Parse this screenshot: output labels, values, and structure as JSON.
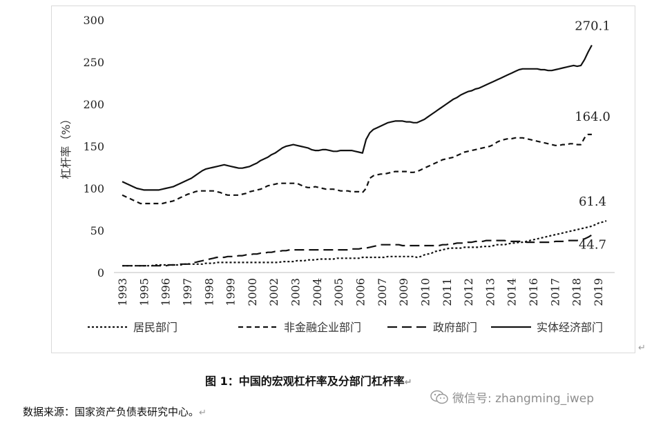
{
  "chart_data": {
    "type": "line",
    "ylabel": "杠杆率（%）",
    "xlabel": "",
    "ylim": [
      0,
      300
    ],
    "yticks": [
      0,
      50,
      100,
      150,
      200,
      250,
      300
    ],
    "xtick_labels": [
      "1993",
      "1995",
      "1996",
      "1997",
      "1998",
      "1999",
      "2000",
      "2002",
      "2003",
      "2004",
      "2005",
      "2006",
      "2007",
      "2009",
      "2010",
      "2011",
      "2012",
      "2013",
      "2014",
      "2016",
      "2017",
      "2018",
      "2019"
    ],
    "grid": false,
    "legend_position": "bottom",
    "x_quarters": "1993Q4–2019Q4",
    "series": [
      {
        "name": "居民部门",
        "dash": "3,3",
        "end_label": "61.4",
        "values": [
          8,
          8,
          8,
          8,
          8,
          8,
          8,
          8,
          8,
          9,
          9,
          9,
          9,
          9,
          9,
          9,
          9,
          10,
          10,
          10,
          10,
          10,
          10,
          11,
          11,
          11,
          12,
          12,
          12,
          12,
          12,
          12,
          12,
          12,
          12,
          12,
          12,
          12,
          12,
          12,
          12,
          12,
          12,
          12,
          13,
          13,
          13,
          13,
          14,
          14,
          14,
          15,
          15,
          15,
          16,
          16,
          16,
          16,
          16,
          17,
          17,
          17,
          17,
          17,
          17,
          17,
          18,
          18,
          18,
          18,
          18,
          18,
          18,
          19,
          19,
          19,
          19,
          19,
          19,
          19,
          19,
          18,
          19,
          21,
          22,
          23,
          25,
          26,
          27,
          28,
          29,
          29,
          29,
          29,
          30,
          30,
          30,
          30,
          30,
          31,
          31,
          31,
          32,
          33,
          33,
          33,
          34,
          35,
          35,
          36,
          36,
          37,
          38,
          39,
          40,
          41,
          42,
          43,
          44,
          45,
          46,
          47,
          48,
          49,
          50,
          51,
          52,
          53,
          54,
          55,
          57,
          59,
          60,
          61.4
        ]
      },
      {
        "name": "非金融企业部门",
        "dash": "7,5",
        "end_label": "164.0",
        "values": [
          92,
          90,
          88,
          86,
          84,
          82,
          82,
          82,
          82,
          82,
          82,
          82,
          83,
          84,
          85,
          87,
          89,
          91,
          93,
          94,
          96,
          97,
          97,
          97,
          97,
          97,
          96,
          95,
          93,
          92,
          92,
          92,
          92,
          93,
          94,
          96,
          97,
          98,
          99,
          101,
          103,
          104,
          105,
          106,
          106,
          106,
          106,
          106,
          106,
          104,
          102,
          101,
          101,
          102,
          101,
          100,
          99,
          99,
          99,
          98,
          97,
          97,
          97,
          96,
          96,
          96,
          95,
          100,
          112,
          115,
          116,
          117,
          117,
          118,
          119,
          120,
          120,
          120,
          120,
          119,
          119,
          120,
          122,
          124,
          126,
          128,
          130,
          132,
          134,
          135,
          136,
          137,
          139,
          141,
          143,
          144,
          145,
          146,
          147,
          148,
          149,
          150,
          152,
          155,
          157,
          158,
          159,
          159,
          160,
          160,
          160,
          159,
          158,
          157,
          156,
          155,
          154,
          153,
          152,
          151,
          151,
          152,
          152,
          153,
          153,
          152,
          152,
          160,
          164,
          164.0
        ]
      },
      {
        "name": "政府部门",
        "dash": "14,7",
        "end_label": "44.7",
        "values": [
          8,
          8,
          8,
          8,
          8,
          8,
          8,
          8,
          8,
          8,
          8,
          8,
          8,
          9,
          9,
          9,
          10,
          10,
          10,
          11,
          12,
          13,
          14,
          15,
          16,
          17,
          18,
          18,
          18,
          19,
          19,
          19,
          20,
          20,
          21,
          21,
          22,
          22,
          23,
          23,
          24,
          24,
          25,
          25,
          26,
          26,
          27,
          27,
          27,
          27,
          27,
          27,
          27,
          27,
          27,
          27,
          27,
          27,
          27,
          27,
          27,
          27,
          27,
          28,
          28,
          28,
          29,
          29,
          30,
          31,
          32,
          33,
          33,
          33,
          33,
          33,
          33,
          32,
          32,
          32,
          32,
          32,
          32,
          32,
          32,
          32,
          32,
          32,
          33,
          33,
          34,
          34,
          35,
          35,
          35,
          36,
          36,
          37,
          37,
          37,
          38,
          38,
          38,
          38,
          38,
          38,
          37,
          37,
          37,
          37,
          37,
          36,
          36,
          36,
          36,
          36,
          36,
          36,
          36,
          37,
          37,
          37,
          38,
          38,
          38,
          38,
          39,
          40,
          42,
          44.7
        ]
      },
      {
        "name": "实体经济部门",
        "dash": "",
        "end_label": "270.1",
        "values": [
          108,
          106,
          104,
          102,
          100,
          99,
          98,
          98,
          98,
          98,
          98,
          99,
          100,
          101,
          102,
          104,
          106,
          108,
          110,
          112,
          115,
          118,
          121,
          123,
          124,
          125,
          126,
          127,
          128,
          127,
          126,
          125,
          124,
          124,
          125,
          126,
          128,
          130,
          133,
          135,
          137,
          140,
          142,
          145,
          148,
          150,
          151,
          152,
          151,
          150,
          149,
          148,
          146,
          145,
          145,
          146,
          146,
          145,
          144,
          144,
          145,
          145,
          145,
          145,
          144,
          143,
          142,
          158,
          166,
          170,
          172,
          174,
          176,
          178,
          179,
          180,
          180,
          180,
          179,
          179,
          178,
          178,
          180,
          182,
          185,
          188,
          191,
          194,
          197,
          200,
          203,
          206,
          208,
          211,
          213,
          215,
          216,
          218,
          219,
          221,
          223,
          225,
          227,
          229,
          231,
          233,
          235,
          237,
          239,
          241,
          242,
          242,
          242,
          242,
          242,
          241,
          241,
          240,
          240,
          241,
          242,
          243,
          244,
          245,
          246,
          245,
          246,
          253,
          262,
          270.1
        ]
      }
    ]
  },
  "caption": "图 1：中国的宏观杠杆率及分部门杠杆率",
  "source": "数据来源：国家资产负债表研究中心。",
  "watermark": "微信号: zhangming_iwep",
  "return_mark": "↵"
}
